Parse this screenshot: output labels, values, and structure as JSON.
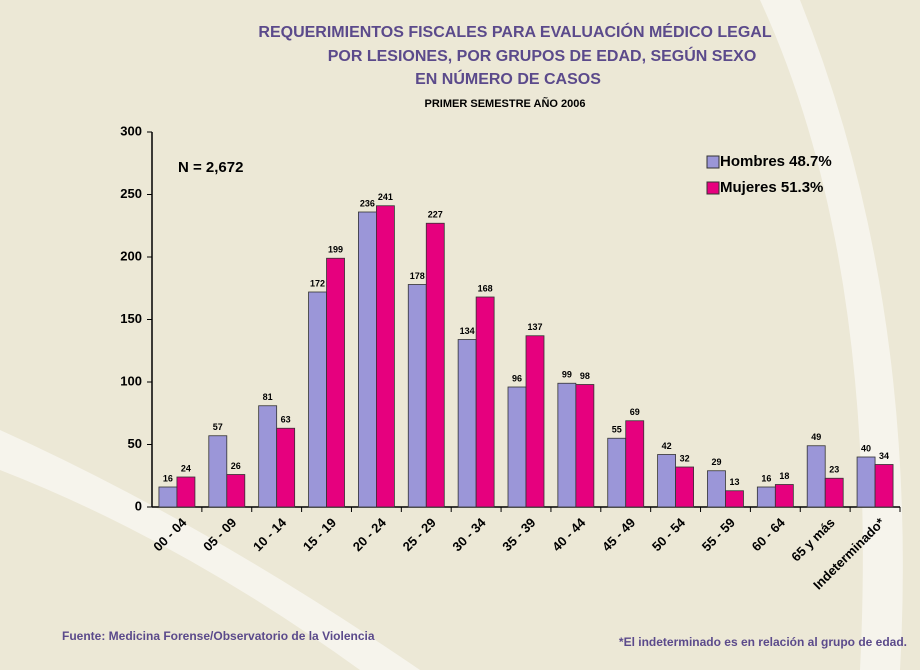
{
  "chart_data": {
    "type": "bar",
    "title": [
      "REQUERIMIENTOS FISCALES PARA EVALUACIÓN MÉDICO LEGAL",
      "POR LESIONES, POR GRUPOS DE EDAD, SEGÚN SEXO",
      "EN NÚMERO DE CASOS"
    ],
    "subtitle": "PRIMER SEMESTRE AÑO 2006",
    "annotation": "N = 2,672",
    "source": "Fuente: Medicina Forense/Observatorio de la Violencia",
    "footnote": "*El indeterminado es en relación al grupo de edad.",
    "categories": [
      "00 - 04",
      "05 - 09",
      "10 - 14",
      "15 - 19",
      "20 - 24",
      "25 - 29",
      "30 - 34",
      "35 - 39",
      "40 - 44",
      "45 - 49",
      "50 - 54",
      "55 - 59",
      "60 - 64",
      "65 y más",
      "Indeterminado*"
    ],
    "series": [
      {
        "name": "Hombres 48.7%",
        "color": "#9b96d8",
        "values": [
          16,
          57,
          81,
          172,
          236,
          178,
          134,
          96,
          99,
          55,
          42,
          29,
          16,
          49,
          40
        ]
      },
      {
        "name": "Mujeres 51.3%",
        "color": "#e6007e",
        "values": [
          24,
          26,
          63,
          199,
          241,
          227,
          168,
          137,
          98,
          69,
          32,
          13,
          18,
          23,
          34
        ]
      }
    ],
    "ylim": [
      0,
      300
    ],
    "yticks": [
      0,
      50,
      100,
      150,
      200,
      250,
      300
    ],
    "legend": "upper right"
  }
}
